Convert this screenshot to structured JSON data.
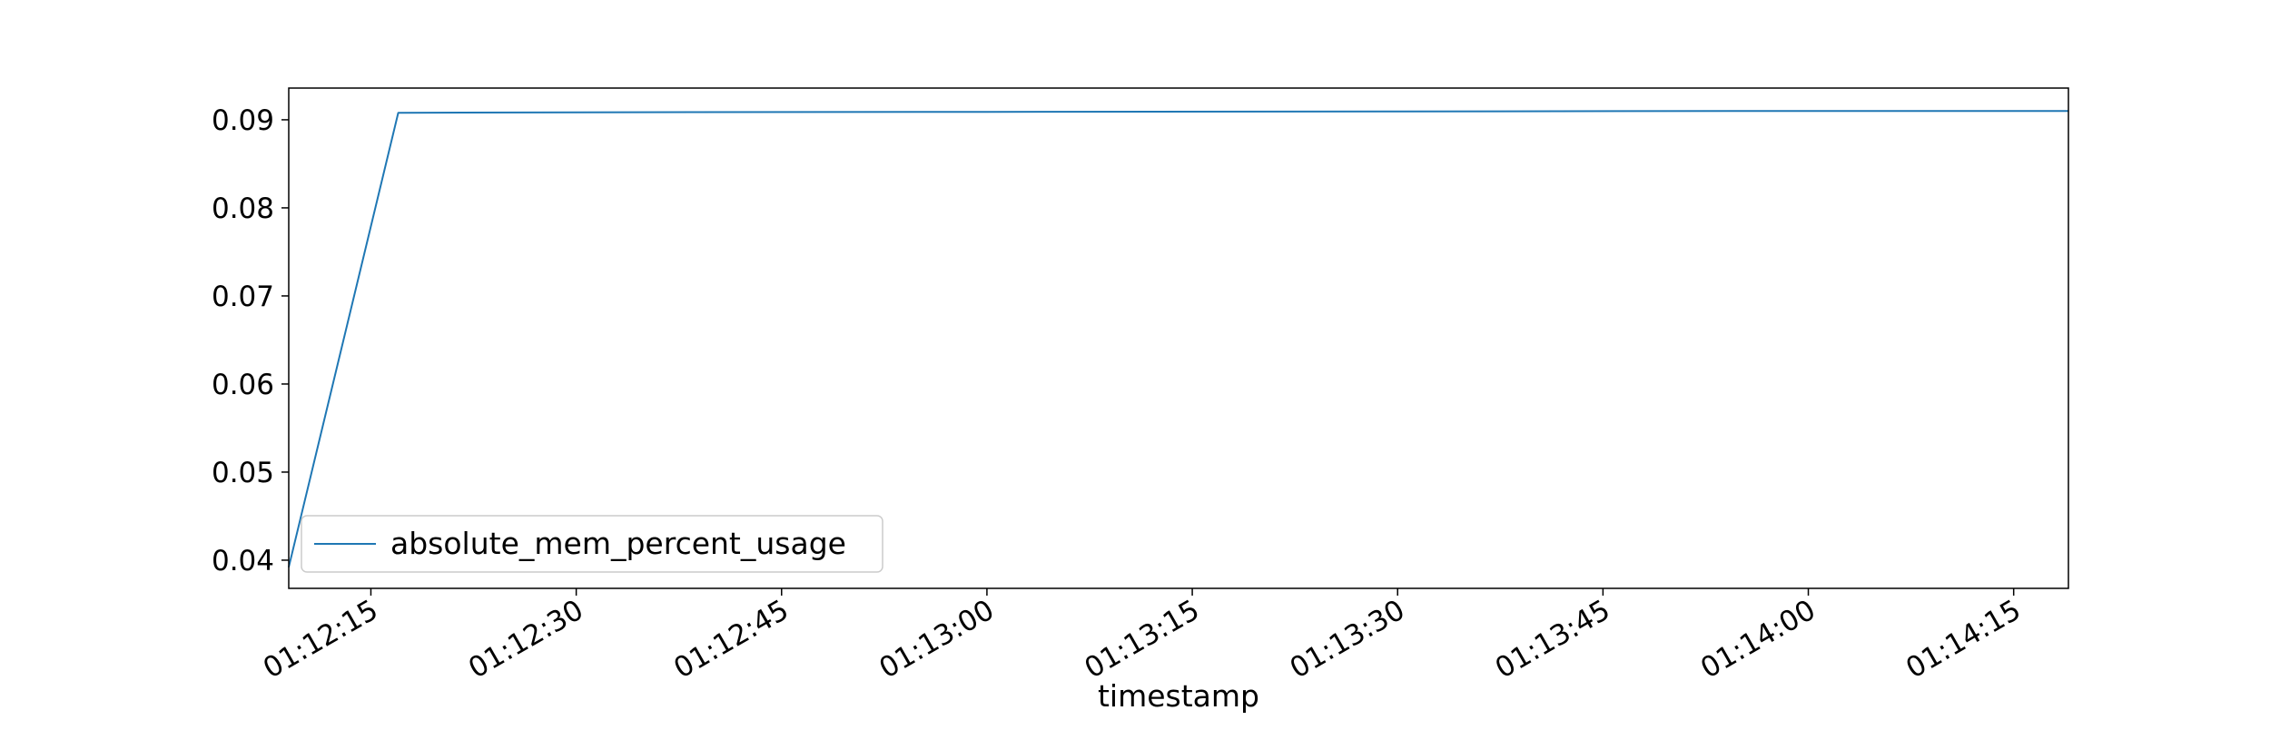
{
  "chart_data": {
    "type": "line",
    "title": "",
    "xlabel": "timestamp",
    "ylabel": "",
    "xlim": [
      "01:12:09",
      "01:14:19"
    ],
    "ylim": [
      0.0368,
      0.0936
    ],
    "x_ticks": [
      "01:12:15",
      "01:12:30",
      "01:12:45",
      "01:13:00",
      "01:13:15",
      "01:13:30",
      "01:13:45",
      "01:14:00",
      "01:14:15"
    ],
    "y_ticks": [
      "0.04",
      "0.05",
      "0.06",
      "0.07",
      "0.08",
      "0.09"
    ],
    "grid": false,
    "legend_position": "lower-left",
    "series": [
      {
        "name": "absolute_mem_percent_usage",
        "color": "#1f77b4",
        "x": [
          "01:12:09",
          "01:12:17",
          "01:12:30",
          "01:13:00",
          "01:13:30",
          "01:14:00",
          "01:14:19"
        ],
        "y": [
          0.0392,
          0.0908,
          0.09085,
          0.0909,
          0.09095,
          0.091,
          0.091
        ]
      }
    ]
  }
}
